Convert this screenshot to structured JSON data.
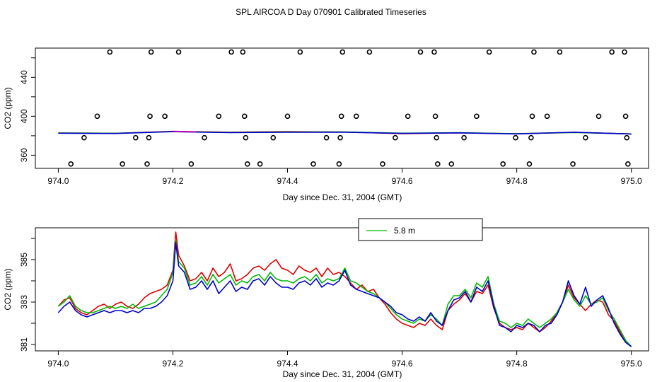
{
  "figure_title": "SPL AIRCOA D  Day 070901  Calibrated Timeseries",
  "colors": {
    "axis": "#000000",
    "red": "#dd0000",
    "green": "#00bb00",
    "blue": "#0000cc",
    "magenta": "#cc00cc",
    "cal_marker": "#000000"
  },
  "chart_data": [
    {
      "type": "scatter",
      "title": "",
      "xlabel": "Day since Dec. 31, 2004 (GMT)",
      "ylabel": "CO2 (ppm)",
      "xlim": [
        973.96,
        975.03
      ],
      "ylim": [
        346.5,
        470.0
      ],
      "xticks": [
        974.0,
        974.2,
        974.4,
        974.6,
        974.8,
        975.0
      ],
      "xtick_labels": [
        "974.0",
        "974.2",
        "974.4",
        "974.6",
        "974.8",
        "975.0"
      ],
      "yticks": [
        360,
        380,
        400,
        420,
        440,
        460
      ],
      "ytick_labels": [
        "360",
        "",
        "400",
        "",
        "440",
        ""
      ],
      "cal_points": {
        "name": "calibration standards",
        "marker": "open circle",
        "x": [
          974.022,
          974.045,
          974.068,
          974.09,
          974.112,
          974.135,
          974.155,
          974.158,
          974.16,
          974.162,
          974.186,
          974.21,
          974.232,
          974.255,
          974.28,
          974.302,
          974.322,
          974.325,
          974.327,
          974.33,
          974.352,
          974.375,
          974.4,
          974.422,
          974.445,
          974.468,
          974.49,
          974.492,
          974.494,
          974.496,
          974.52,
          974.543,
          974.566,
          974.588,
          974.61,
          974.632,
          974.656,
          974.658,
          974.66,
          974.662,
          974.686,
          974.708,
          974.73,
          974.752,
          974.776,
          974.798,
          974.822,
          974.825,
          974.827,
          974.83,
          974.853,
          974.875,
          974.898,
          974.92,
          974.943,
          974.966,
          974.988,
          974.99,
          974.992,
          974.994
        ],
        "y": [
          351,
          378,
          400,
          466,
          351,
          378,
          351,
          378,
          400,
          466,
          400,
          466,
          351,
          378,
          400,
          466,
          466,
          400,
          378,
          351,
          351,
          378,
          400,
          466,
          351,
          378,
          351,
          378,
          400,
          466,
          400,
          466,
          351,
          378,
          400,
          466,
          466,
          400,
          378,
          351,
          351,
          378,
          400,
          466,
          351,
          378,
          351,
          378,
          400,
          466,
          400,
          466,
          351,
          378,
          400,
          466,
          466,
          400,
          378,
          351
        ]
      },
      "series": [
        {
          "name": "red",
          "color": "#dd0000",
          "x": [
            974.0,
            974.1,
            974.2,
            974.3,
            974.4,
            974.5,
            974.6,
            974.7,
            974.8,
            974.9,
            975.0
          ],
          "values": [
            382.8,
            382.5,
            384.5,
            383.6,
            384.2,
            383.8,
            382.2,
            383.0,
            382.0,
            383.5,
            381.8
          ]
        },
        {
          "name": "green",
          "color": "#00bb00",
          "x": [
            974.0,
            974.1,
            974.2,
            974.3,
            974.4,
            974.5,
            974.6,
            974.7,
            974.8,
            974.9,
            975.0
          ],
          "values": [
            382.8,
            382.5,
            384.3,
            383.4,
            383.9,
            383.9,
            382.6,
            383.2,
            382.1,
            383.3,
            381.9
          ]
        },
        {
          "name": "blue",
          "color": "#0000cc",
          "x": [
            974.0,
            974.1,
            974.2,
            974.3,
            974.4,
            974.5,
            974.6,
            974.7,
            974.8,
            974.9,
            975.0
          ],
          "values": [
            382.6,
            382.3,
            384.2,
            383.2,
            383.6,
            383.6,
            382.4,
            383.0,
            381.9,
            383.6,
            381.8
          ]
        },
        {
          "name": "magenta",
          "color": "#cc00cc",
          "x": [
            974.2,
            974.22,
            974.24
          ],
          "values": [
            384.6,
            384.2,
            384.0
          ]
        }
      ]
    },
    {
      "type": "line",
      "title": "",
      "xlabel": "Day since Dec. 31, 2004 (GMT)",
      "ylabel": "CO2 (ppm)",
      "xlim": [
        973.96,
        975.03
      ],
      "ylim": [
        380.7,
        386.5
      ],
      "xticks": [
        974.0,
        974.2,
        974.4,
        974.6,
        974.8,
        975.0
      ],
      "xtick_labels": [
        "974.0",
        "974.2",
        "974.4",
        "974.6",
        "974.8",
        "975.0"
      ],
      "yticks": [
        381,
        382,
        383,
        384,
        385,
        386
      ],
      "ytick_labels": [
        "381",
        "",
        "383",
        "",
        "385",
        ""
      ],
      "legend": {
        "placement": "top-center",
        "entries": [
          {
            "label": "5.8 m",
            "color": "#00bb00"
          }
        ]
      },
      "x": [
        974.0,
        974.01,
        974.02,
        974.03,
        974.04,
        974.05,
        974.06,
        974.07,
        974.08,
        974.09,
        974.1,
        974.11,
        974.12,
        974.13,
        974.14,
        974.15,
        974.16,
        974.17,
        974.18,
        974.19,
        974.2,
        974.205,
        974.21,
        974.22,
        974.23,
        974.24,
        974.25,
        974.26,
        974.27,
        974.28,
        974.29,
        974.3,
        974.31,
        974.32,
        974.33,
        974.34,
        974.35,
        974.36,
        974.37,
        974.38,
        974.39,
        974.4,
        974.41,
        974.42,
        974.43,
        974.44,
        974.45,
        974.46,
        974.47,
        974.48,
        974.49,
        974.5,
        974.51,
        974.52,
        974.53,
        974.54,
        974.55,
        974.56,
        974.57,
        974.58,
        974.59,
        974.6,
        974.61,
        974.62,
        974.63,
        974.64,
        974.65,
        974.66,
        974.67,
        974.68,
        974.69,
        974.7,
        974.71,
        974.72,
        974.73,
        974.74,
        974.75,
        974.76,
        974.77,
        974.78,
        974.79,
        974.8,
        974.81,
        974.82,
        974.83,
        974.84,
        974.85,
        974.86,
        974.87,
        974.88,
        974.89,
        974.9,
        974.91,
        974.92,
        974.93,
        974.94,
        974.95,
        974.96,
        974.97,
        974.98,
        974.99,
        975.0
      ],
      "series": [
        {
          "name": "red",
          "color": "#dd0000",
          "values": [
            382.8,
            383.1,
            383.2,
            382.7,
            382.5,
            382.4,
            382.6,
            382.8,
            382.9,
            382.7,
            382.9,
            383.0,
            382.8,
            382.7,
            382.9,
            383.2,
            383.4,
            383.5,
            383.6,
            383.8,
            384.5,
            386.3,
            385.2,
            384.7,
            384.0,
            384.1,
            384.4,
            384.0,
            384.6,
            384.2,
            384.4,
            384.8,
            384.0,
            384.1,
            384.3,
            384.6,
            384.7,
            384.5,
            384.8,
            385.0,
            384.6,
            384.5,
            384.3,
            384.7,
            384.5,
            384.4,
            384.6,
            384.2,
            384.6,
            384.3,
            384.4,
            384.2,
            383.9,
            383.6,
            383.8,
            383.5,
            383.6,
            383.2,
            382.9,
            382.5,
            382.2,
            382.0,
            381.9,
            381.8,
            382.0,
            381.9,
            382.2,
            381.9,
            381.7,
            382.6,
            382.9,
            383.1,
            383.4,
            383.0,
            383.5,
            383.4,
            383.8,
            382.7,
            382.0,
            381.8,
            381.7,
            381.8,
            381.7,
            382.0,
            381.8,
            381.6,
            381.8,
            382.1,
            382.5,
            383.0,
            383.8,
            383.2,
            382.9,
            382.6,
            382.9,
            383.1,
            383.0,
            382.4,
            382.1,
            381.6,
            381.1,
            380.9
          ]
        },
        {
          "name": "green",
          "color": "#00bb00",
          "values": [
            382.8,
            383.0,
            383.3,
            382.8,
            382.6,
            382.5,
            382.5,
            382.6,
            382.7,
            382.8,
            382.7,
            382.8,
            382.7,
            382.9,
            382.7,
            382.8,
            382.9,
            383.0,
            383.3,
            383.6,
            384.4,
            385.9,
            384.9,
            384.6,
            383.8,
            383.9,
            384.2,
            383.8,
            384.3,
            383.9,
            384.1,
            384.3,
            383.8,
            384.0,
            383.9,
            384.2,
            384.3,
            384.0,
            384.4,
            384.1,
            384.0,
            384.0,
            383.9,
            384.1,
            384.2,
            384.0,
            384.3,
            383.9,
            384.1,
            384.0,
            384.1,
            384.6,
            384.0,
            383.9,
            383.7,
            383.5,
            383.4,
            383.2,
            383.0,
            382.7,
            382.4,
            382.2,
            382.1,
            382.0,
            382.2,
            382.1,
            382.4,
            382.2,
            381.9,
            382.9,
            383.3,
            383.3,
            383.6,
            383.2,
            383.9,
            383.7,
            384.2,
            382.9,
            382.1,
            382.0,
            381.8,
            382.0,
            381.9,
            382.2,
            382.0,
            381.8,
            382.0,
            382.2,
            382.5,
            383.0,
            383.6,
            383.1,
            382.8,
            383.3,
            382.9,
            383.0,
            383.2,
            382.6,
            382.2,
            381.7,
            381.2,
            380.9
          ]
        },
        {
          "name": "blue",
          "color": "#0000cc",
          "values": [
            382.5,
            382.8,
            383.0,
            382.6,
            382.4,
            382.3,
            382.4,
            382.5,
            382.6,
            382.5,
            382.6,
            382.6,
            382.5,
            382.6,
            382.5,
            382.7,
            382.7,
            382.8,
            383.0,
            383.3,
            384.0,
            385.8,
            384.7,
            384.4,
            383.6,
            383.7,
            384.0,
            383.6,
            384.0,
            383.4,
            383.7,
            384.0,
            383.5,
            383.7,
            383.6,
            384.0,
            384.1,
            383.8,
            384.2,
            383.9,
            383.7,
            383.7,
            383.6,
            383.9,
            384.0,
            383.8,
            384.1,
            383.7,
            383.9,
            383.8,
            384.0,
            384.5,
            383.8,
            383.6,
            383.5,
            383.4,
            383.3,
            383.2,
            383.0,
            382.8,
            382.5,
            382.4,
            382.2,
            382.1,
            382.3,
            382.1,
            382.5,
            382.1,
            381.9,
            382.6,
            383.1,
            383.2,
            383.5,
            383.0,
            383.7,
            383.5,
            384.0,
            382.8,
            381.9,
            381.8,
            381.6,
            381.9,
            381.8,
            382.0,
            381.9,
            381.6,
            381.9,
            382.0,
            382.4,
            383.0,
            384.0,
            383.3,
            382.9,
            383.7,
            382.8,
            383.1,
            383.3,
            382.7,
            382.0,
            381.5,
            381.1,
            380.9
          ]
        }
      ]
    }
  ]
}
